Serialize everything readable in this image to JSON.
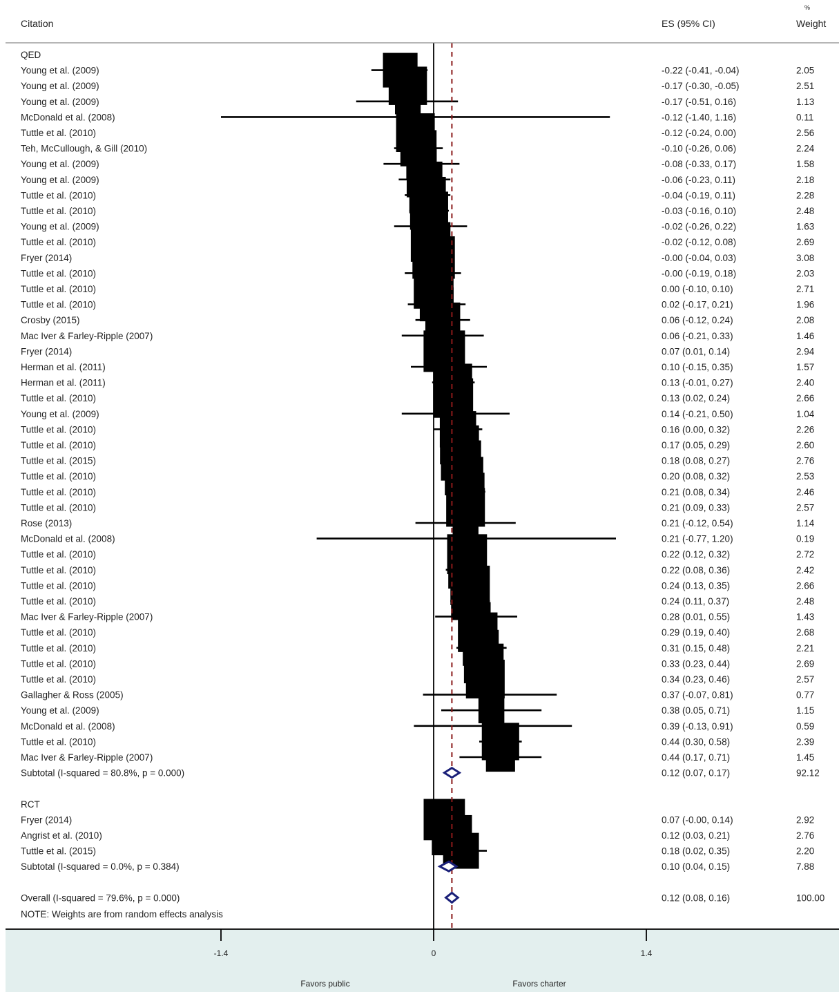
{
  "chart_data": {
    "type": "forest",
    "headers": {
      "citation": "Citation",
      "es": "ES (95% CI)",
      "weight_pct": "%",
      "weight": "Weight"
    },
    "x_ticks": [
      {
        "value": -1.4,
        "label": "-1.4"
      },
      {
        "value": 0,
        "label": "0"
      },
      {
        "value": 1.4,
        "label": "1.4"
      }
    ],
    "xlim": [
      -1.4,
      1.4
    ],
    "null_line": 0,
    "overall_line": 0.12,
    "favors_left": "Favors public",
    "favors_right": "Favors charter",
    "note": "NOTE: Weights are from random effects analysis",
    "colors": {
      "box": "#000000",
      "diamond": "#1a1f78",
      "axis_band": "#e3efee",
      "ref_line": "#8b1a1a"
    },
    "groups": [
      {
        "label": "QED",
        "studies": [
          {
            "citation": "Young et al. (2009)",
            "es": -0.22,
            "lo": -0.41,
            "hi": -0.04,
            "ci_text": "-0.22 (-0.41, -0.04)",
            "weight": 2.05,
            "weight_text": "2.05"
          },
          {
            "citation": "Young et al. (2009)",
            "es": -0.17,
            "lo": -0.3,
            "hi": -0.05,
            "ci_text": "-0.17 (-0.30, -0.05)",
            "weight": 2.51,
            "weight_text": "2.51"
          },
          {
            "citation": "Young et al. (2009)",
            "es": -0.17,
            "lo": -0.51,
            "hi": 0.16,
            "ci_text": "-0.17 (-0.51, 0.16)",
            "weight": 1.13,
            "weight_text": "1.13"
          },
          {
            "citation": "McDonald et al. (2008)",
            "es": -0.12,
            "lo": -1.4,
            "hi": 1.16,
            "ci_text": "-0.12 (-1.40, 1.16)",
            "weight": 0.11,
            "weight_text": "0.11"
          },
          {
            "citation": "Tuttle et al. (2010)",
            "es": -0.12,
            "lo": -0.24,
            "hi": 0.0,
            "ci_text": "-0.12 (-0.24, 0.00)",
            "weight": 2.56,
            "weight_text": "2.56"
          },
          {
            "citation": "Teh, McCullough, & Gill (2010)",
            "es": -0.1,
            "lo": -0.26,
            "hi": 0.06,
            "ci_text": "-0.10 (-0.26, 0.06)",
            "weight": 2.24,
            "weight_text": "2.24"
          },
          {
            "citation": "Young et al. (2009)",
            "es": -0.08,
            "lo": -0.33,
            "hi": 0.17,
            "ci_text": "-0.08 (-0.33, 0.17)",
            "weight": 1.58,
            "weight_text": "1.58"
          },
          {
            "citation": "Young et al. (2009)",
            "es": -0.06,
            "lo": -0.23,
            "hi": 0.11,
            "ci_text": "-0.06 (-0.23, 0.11)",
            "weight": 2.18,
            "weight_text": "2.18"
          },
          {
            "citation": "Tuttle et al. (2010)",
            "es": -0.04,
            "lo": -0.19,
            "hi": 0.11,
            "ci_text": "-0.04 (-0.19, 0.11)",
            "weight": 2.28,
            "weight_text": "2.28"
          },
          {
            "citation": "Tuttle et al. (2010)",
            "es": -0.03,
            "lo": -0.16,
            "hi": 0.1,
            "ci_text": "-0.03 (-0.16, 0.10)",
            "weight": 2.48,
            "weight_text": "2.48"
          },
          {
            "citation": "Young et al. (2009)",
            "es": -0.02,
            "lo": -0.26,
            "hi": 0.22,
            "ci_text": "-0.02 (-0.26, 0.22)",
            "weight": 1.63,
            "weight_text": "1.63"
          },
          {
            "citation": "Tuttle et al. (2010)",
            "es": -0.02,
            "lo": -0.12,
            "hi": 0.08,
            "ci_text": "-0.02 (-0.12, 0.08)",
            "weight": 2.69,
            "weight_text": "2.69"
          },
          {
            "citation": "Fryer (2014)",
            "es": -0.0,
            "lo": -0.04,
            "hi": 0.03,
            "ci_text": "-0.00 (-0.04, 0.03)",
            "weight": 3.08,
            "weight_text": "3.08"
          },
          {
            "citation": "Tuttle et al. (2010)",
            "es": -0.0,
            "lo": -0.19,
            "hi": 0.18,
            "ci_text": "-0.00 (-0.19, 0.18)",
            "weight": 2.03,
            "weight_text": "2.03"
          },
          {
            "citation": "Tuttle et al. (2010)",
            "es": 0.0,
            "lo": -0.1,
            "hi": 0.1,
            "ci_text": "0.00 (-0.10, 0.10)",
            "weight": 2.71,
            "weight_text": "2.71"
          },
          {
            "citation": "Tuttle et al. (2010)",
            "es": 0.02,
            "lo": -0.17,
            "hi": 0.21,
            "ci_text": "0.02 (-0.17, 0.21)",
            "weight": 1.96,
            "weight_text": "1.96"
          },
          {
            "citation": "Crosby (2015)",
            "es": 0.06,
            "lo": -0.12,
            "hi": 0.24,
            "ci_text": "0.06 (-0.12, 0.24)",
            "weight": 2.08,
            "weight_text": "2.08"
          },
          {
            "citation": "Mac Iver & Farley-Ripple (2007)",
            "es": 0.06,
            "lo": -0.21,
            "hi": 0.33,
            "ci_text": "0.06 (-0.21, 0.33)",
            "weight": 1.46,
            "weight_text": "1.46"
          },
          {
            "citation": "Fryer (2014)",
            "es": 0.07,
            "lo": 0.01,
            "hi": 0.14,
            "ci_text": "0.07 (0.01, 0.14)",
            "weight": 2.94,
            "weight_text": "2.94"
          },
          {
            "citation": "Herman et al. (2011)",
            "es": 0.1,
            "lo": -0.15,
            "hi": 0.35,
            "ci_text": "0.10 (-0.15, 0.35)",
            "weight": 1.57,
            "weight_text": "1.57"
          },
          {
            "citation": "Herman et al. (2011)",
            "es": 0.13,
            "lo": -0.01,
            "hi": 0.27,
            "ci_text": "0.13 (-0.01, 0.27)",
            "weight": 2.4,
            "weight_text": "2.40"
          },
          {
            "citation": "Tuttle et al. (2010)",
            "es": 0.13,
            "lo": 0.02,
            "hi": 0.24,
            "ci_text": "0.13 (0.02, 0.24)",
            "weight": 2.66,
            "weight_text": "2.66"
          },
          {
            "citation": "Young et al. (2009)",
            "es": 0.14,
            "lo": -0.21,
            "hi": 0.5,
            "ci_text": "0.14 (-0.21, 0.50)",
            "weight": 1.04,
            "weight_text": "1.04"
          },
          {
            "citation": "Tuttle et al. (2010)",
            "es": 0.16,
            "lo": 0.0,
            "hi": 0.32,
            "ci_text": "0.16 (0.00, 0.32)",
            "weight": 2.26,
            "weight_text": "2.26"
          },
          {
            "citation": "Tuttle et al. (2010)",
            "es": 0.17,
            "lo": 0.05,
            "hi": 0.29,
            "ci_text": "0.17 (0.05, 0.29)",
            "weight": 2.6,
            "weight_text": "2.60"
          },
          {
            "citation": "Tuttle et al. (2015)",
            "es": 0.18,
            "lo": 0.08,
            "hi": 0.27,
            "ci_text": "0.18 (0.08, 0.27)",
            "weight": 2.76,
            "weight_text": "2.76"
          },
          {
            "citation": "Tuttle et al. (2010)",
            "es": 0.2,
            "lo": 0.08,
            "hi": 0.32,
            "ci_text": "0.20 (0.08, 0.32)",
            "weight": 2.53,
            "weight_text": "2.53"
          },
          {
            "citation": "Tuttle et al. (2010)",
            "es": 0.21,
            "lo": 0.08,
            "hi": 0.34,
            "ci_text": "0.21 (0.08, 0.34)",
            "weight": 2.46,
            "weight_text": "2.46"
          },
          {
            "citation": "Tuttle et al. (2010)",
            "es": 0.21,
            "lo": 0.09,
            "hi": 0.33,
            "ci_text": "0.21 (0.09, 0.33)",
            "weight": 2.57,
            "weight_text": "2.57"
          },
          {
            "citation": "Rose (2013)",
            "es": 0.21,
            "lo": -0.12,
            "hi": 0.54,
            "ci_text": "0.21 (-0.12, 0.54)",
            "weight": 1.14,
            "weight_text": "1.14"
          },
          {
            "citation": "McDonald et al. (2008)",
            "es": 0.21,
            "lo": -0.77,
            "hi": 1.2,
            "ci_text": "0.21 (-0.77, 1.20)",
            "weight": 0.19,
            "weight_text": "0.19"
          },
          {
            "citation": "Tuttle et al. (2010)",
            "es": 0.22,
            "lo": 0.12,
            "hi": 0.32,
            "ci_text": "0.22 (0.12, 0.32)",
            "weight": 2.72,
            "weight_text": "2.72"
          },
          {
            "citation": "Tuttle et al. (2010)",
            "es": 0.22,
            "lo": 0.08,
            "hi": 0.36,
            "ci_text": "0.22 (0.08, 0.36)",
            "weight": 2.42,
            "weight_text": "2.42"
          },
          {
            "citation": "Tuttle et al. (2010)",
            "es": 0.24,
            "lo": 0.13,
            "hi": 0.35,
            "ci_text": "0.24 (0.13, 0.35)",
            "weight": 2.66,
            "weight_text": "2.66"
          },
          {
            "citation": "Tuttle et al. (2010)",
            "es": 0.24,
            "lo": 0.11,
            "hi": 0.37,
            "ci_text": "0.24 (0.11, 0.37)",
            "weight": 2.48,
            "weight_text": "2.48"
          },
          {
            "citation": "Mac Iver & Farley-Ripple (2007)",
            "es": 0.28,
            "lo": 0.01,
            "hi": 0.55,
            "ci_text": "0.28 (0.01, 0.55)",
            "weight": 1.43,
            "weight_text": "1.43"
          },
          {
            "citation": "Tuttle et al. (2010)",
            "es": 0.29,
            "lo": 0.19,
            "hi": 0.4,
            "ci_text": "0.29 (0.19, 0.40)",
            "weight": 2.68,
            "weight_text": "2.68"
          },
          {
            "citation": "Tuttle et al. (2010)",
            "es": 0.31,
            "lo": 0.15,
            "hi": 0.48,
            "ci_text": "0.31 (0.15, 0.48)",
            "weight": 2.21,
            "weight_text": "2.21"
          },
          {
            "citation": "Tuttle et al. (2010)",
            "es": 0.33,
            "lo": 0.23,
            "hi": 0.44,
            "ci_text": "0.33 (0.23, 0.44)",
            "weight": 2.69,
            "weight_text": "2.69"
          },
          {
            "citation": "Tuttle et al. (2010)",
            "es": 0.34,
            "lo": 0.23,
            "hi": 0.46,
            "ci_text": "0.34 (0.23, 0.46)",
            "weight": 2.57,
            "weight_text": "2.57"
          },
          {
            "citation": "Gallagher & Ross (2005)",
            "es": 0.37,
            "lo": -0.07,
            "hi": 0.81,
            "ci_text": "0.37 (-0.07, 0.81)",
            "weight": 0.77,
            "weight_text": "0.77"
          },
          {
            "citation": "Young et al. (2009)",
            "es": 0.38,
            "lo": 0.05,
            "hi": 0.71,
            "ci_text": "0.38 (0.05, 0.71)",
            "weight": 1.15,
            "weight_text": "1.15"
          },
          {
            "citation": "McDonald et al. (2008)",
            "es": 0.39,
            "lo": -0.13,
            "hi": 0.91,
            "ci_text": "0.39 (-0.13, 0.91)",
            "weight": 0.59,
            "weight_text": "0.59"
          },
          {
            "citation": "Tuttle et al. (2010)",
            "es": 0.44,
            "lo": 0.3,
            "hi": 0.58,
            "ci_text": "0.44 (0.30, 0.58)",
            "weight": 2.39,
            "weight_text": "2.39"
          },
          {
            "citation": "Mac Iver & Farley-Ripple (2007)",
            "es": 0.44,
            "lo": 0.17,
            "hi": 0.71,
            "ci_text": "0.44 (0.17, 0.71)",
            "weight": 1.45,
            "weight_text": "1.45"
          }
        ],
        "subtotal": {
          "label": "Subtotal  (I-squared = 80.8%, p = 0.000)",
          "es": 0.12,
          "lo": 0.07,
          "hi": 0.17,
          "ci_text": "0.12 (0.07, 0.17)",
          "weight_text": "92.12"
        }
      },
      {
        "label": "RCT",
        "studies": [
          {
            "citation": "Fryer (2014)",
            "es": 0.07,
            "lo": -0.0,
            "hi": 0.14,
            "ci_text": "0.07 (-0.00, 0.14)",
            "weight": 2.92,
            "weight_text": "2.92"
          },
          {
            "citation": "Angrist et al. (2010)",
            "es": 0.12,
            "lo": 0.03,
            "hi": 0.21,
            "ci_text": "0.12 (0.03, 0.21)",
            "weight": 2.76,
            "weight_text": "2.76"
          },
          {
            "citation": "Tuttle et al. (2015)",
            "es": 0.18,
            "lo": 0.02,
            "hi": 0.35,
            "ci_text": "0.18 (0.02, 0.35)",
            "weight": 2.2,
            "weight_text": "2.20"
          }
        ],
        "subtotal": {
          "label": "Subtotal  (I-squared = 0.0%, p = 0.384)",
          "es": 0.1,
          "lo": 0.04,
          "hi": 0.15,
          "ci_text": "0.10 (0.04, 0.15)",
          "weight_text": "7.88"
        }
      }
    ],
    "overall": {
      "label": "Overall  (I-squared = 79.6%, p = 0.000)",
      "es": 0.12,
      "lo": 0.08,
      "hi": 0.16,
      "ci_text": "0.12 (0.08, 0.16)",
      "weight_text": "100.00"
    }
  }
}
